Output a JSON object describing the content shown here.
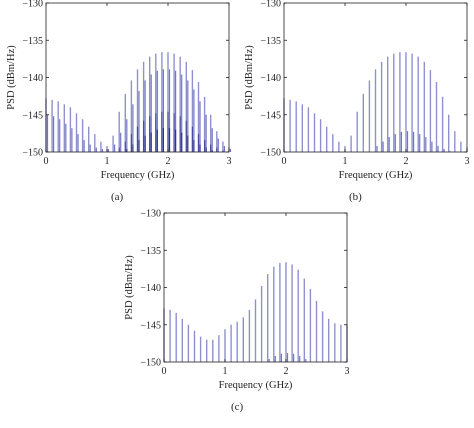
{
  "chart_data": [
    {
      "type": "bar",
      "panel": "a",
      "caption": "(a)",
      "xlabel": "Frequency (GHz)",
      "ylabel": "PSD (dBm/Hz)",
      "xlim": [
        0,
        3
      ],
      "ylim": [
        -150,
        -130
      ],
      "xticks": [
        "0",
        "1",
        "2",
        "3"
      ],
      "yticks": [
        "−130",
        "−135",
        "−140",
        "−145",
        "−150"
      ],
      "grid": false,
      "series": [
        {
          "x": [
            0.0,
            0.1,
            0.2,
            0.3,
            0.4,
            0.5,
            0.6,
            0.7,
            0.8,
            0.9,
            1.0,
            1.1,
            1.2,
            1.3,
            1.4,
            1.5,
            1.6,
            1.7,
            1.8,
            1.9,
            2.0,
            2.1,
            2.2,
            2.3,
            2.4,
            2.5,
            2.6,
            2.7,
            2.8,
            2.9,
            3.0
          ],
          "values": [
            -142.8,
            -143.0,
            -143.2,
            -143.6,
            -144.0,
            -144.8,
            -145.6,
            -146.6,
            -147.6,
            -148.6,
            -149.2,
            -147.8,
            -144.6,
            -142.2,
            -140.4,
            -138.9,
            -137.9,
            -137.2,
            -136.8,
            -136.6,
            -136.6,
            -136.8,
            -137.2,
            -137.9,
            -139.0,
            -140.6,
            -142.6,
            -145.0,
            -147.2,
            -148.6,
            -149.4
          ]
        },
        {
          "x": [
            0.0,
            0.1,
            0.2,
            0.3,
            0.4,
            0.5,
            0.6,
            0.7,
            0.8,
            0.9,
            1.0,
            1.1,
            1.2,
            1.3,
            1.4,
            1.5,
            1.6,
            1.7,
            1.8,
            1.9,
            2.0,
            2.1,
            2.2,
            2.3,
            2.4,
            2.5,
            2.6,
            2.7,
            2.8,
            2.9,
            3.0
          ],
          "values": [
            -145.0,
            -145.2,
            -145.6,
            -146.2,
            -146.8,
            -147.6,
            -148.4,
            -149.0,
            -149.4,
            -149.6,
            -149.6,
            -149.0,
            -147.4,
            -145.6,
            -143.6,
            -141.8,
            -140.4,
            -139.6,
            -139.1,
            -138.9,
            -138.9,
            -139.1,
            -139.6,
            -140.4,
            -141.6,
            -143.2,
            -145.0,
            -146.8,
            -148.2,
            -149.2,
            -149.6
          ]
        },
        {
          "x": [
            1.2,
            1.3,
            1.4,
            1.5,
            1.6,
            1.7,
            1.8,
            1.9,
            2.0,
            2.1,
            2.2,
            2.3,
            2.4,
            2.5,
            2.6,
            2.7,
            2.8,
            2.9
          ],
          "values": [
            -149.4,
            -148.6,
            -147.6,
            -146.6,
            -145.8,
            -145.2,
            -144.8,
            -144.6,
            -144.6,
            -144.8,
            -145.2,
            -145.8,
            -146.6,
            -147.6,
            -148.4,
            -149.0,
            -149.4,
            -149.8
          ]
        },
        {
          "x": [
            1.3,
            1.4,
            1.5,
            1.6,
            1.7,
            1.8,
            1.9,
            2.0,
            2.1,
            2.2,
            2.3,
            2.4,
            2.5,
            2.6,
            2.7,
            2.8
          ],
          "values": [
            -149.6,
            -149.0,
            -148.4,
            -147.8,
            -147.4,
            -147.0,
            -146.8,
            -146.8,
            -147.0,
            -147.4,
            -147.8,
            -148.4,
            -149.0,
            -149.4,
            -149.8,
            -150.0
          ]
        }
      ]
    },
    {
      "type": "bar",
      "panel": "b",
      "caption": "(b)",
      "xlabel": "Frequency (GHz)",
      "ylabel": "PSD (dBm/Hz)",
      "xlim": [
        0,
        3
      ],
      "ylim": [
        -150,
        -130
      ],
      "xticks": [
        "0",
        "1",
        "2",
        "3"
      ],
      "yticks": [
        "−130",
        "−135",
        "−140",
        "−145",
        "−150"
      ],
      "grid": false,
      "series": [
        {
          "x": [
            0.0,
            0.1,
            0.2,
            0.3,
            0.4,
            0.5,
            0.6,
            0.7,
            0.8,
            0.9,
            1.0,
            1.1,
            1.2,
            1.3,
            1.4,
            1.5,
            1.6,
            1.7,
            1.8,
            1.9,
            2.0,
            2.1,
            2.2,
            2.3,
            2.4,
            2.5,
            2.6,
            2.7,
            2.8,
            2.9,
            3.0
          ],
          "values": [
            -142.8,
            -143.0,
            -143.2,
            -143.6,
            -144.0,
            -144.8,
            -145.6,
            -146.6,
            -147.6,
            -148.6,
            -149.2,
            -147.8,
            -144.6,
            -142.2,
            -140.4,
            -138.9,
            -137.9,
            -137.2,
            -136.8,
            -136.6,
            -136.6,
            -136.8,
            -137.2,
            -137.9,
            -139.0,
            -140.6,
            -142.6,
            -145.0,
            -147.2,
            -148.6,
            -149.4
          ]
        },
        {
          "x": [
            1.5,
            1.6,
            1.7,
            1.8,
            1.9,
            2.0,
            2.1,
            2.2,
            2.3,
            2.4,
            2.5,
            2.6,
            2.7
          ],
          "values": [
            -149.2,
            -148.6,
            -148.0,
            -147.6,
            -147.3,
            -147.2,
            -147.3,
            -147.6,
            -148.0,
            -148.6,
            -149.2,
            -149.6,
            -149.9
          ]
        }
      ]
    },
    {
      "type": "bar",
      "panel": "c",
      "caption": "(c)",
      "xlabel": "Frequency (GHz)",
      "ylabel": "PSD (dBm/Hz)",
      "xlim": [
        0,
        3
      ],
      "ylim": [
        -150,
        -130
      ],
      "xticks": [
        "0",
        "1",
        "2",
        "3"
      ],
      "yticks": [
        "−130",
        "−135",
        "−140",
        "−145",
        "−150"
      ],
      "grid": false,
      "series": [
        {
          "x": [
            0.0,
            0.1,
            0.2,
            0.3,
            0.4,
            0.5,
            0.6,
            0.7,
            0.8,
            0.9,
            1.0,
            1.1,
            1.2,
            1.3,
            1.4,
            1.5,
            1.6,
            1.7,
            1.8,
            1.9,
            2.0,
            2.1,
            2.2,
            2.3,
            2.4,
            2.5,
            2.6,
            2.7,
            2.8,
            2.9,
            3.0
          ],
          "values": [
            -142.8,
            -143.0,
            -143.4,
            -144.2,
            -145.0,
            -145.8,
            -146.6,
            -147.0,
            -147.0,
            -146.4,
            -145.6,
            -145.0,
            -144.6,
            -144.0,
            -143.0,
            -141.6,
            -139.8,
            -138.2,
            -137.2,
            -136.7,
            -136.6,
            -136.9,
            -137.6,
            -138.8,
            -140.2,
            -141.8,
            -143.2,
            -144.2,
            -144.8,
            -145.0,
            -145.0
          ]
        },
        {
          "x": [
            1.7,
            1.8,
            1.9,
            2.0,
            2.1,
            2.2,
            2.3
          ],
          "values": [
            -149.6,
            -149.2,
            -148.9,
            -148.8,
            -148.9,
            -149.2,
            -149.6
          ]
        }
      ]
    }
  ]
}
